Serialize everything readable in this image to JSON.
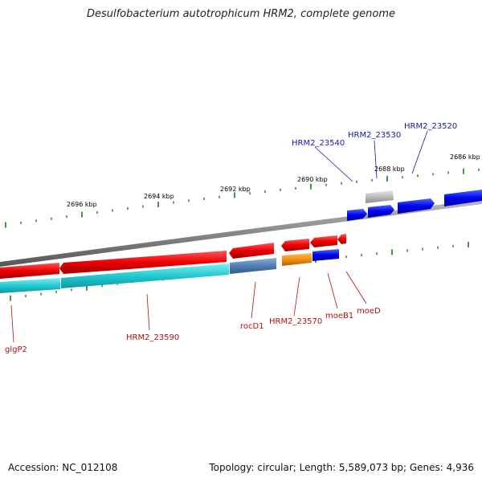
{
  "title": "Desulfobacterium autotrophicum HRM2, complete genome",
  "footer": {
    "accession": "Accession: NC_012108",
    "stats": "Topology: circular; Length: 5,589,073 bp; Genes: 4,936"
  },
  "ruler_labels": [
    "2686 kbp",
    "2688 kbp",
    "2690 kbp",
    "2692 kbp",
    "2694 kbp",
    "2696 kbp"
  ],
  "forward_genes": [
    "HRM2_23520",
    "HRM2_23530",
    "HRM2_23540"
  ],
  "reverse_genes": [
    "moeD",
    "moeB1",
    "HRM2_23570",
    "rocD1",
    "HRM2_23590",
    "glgP2"
  ],
  "colors": {
    "forward_cds": "#0000ee",
    "reverse_cds": "#ee0000",
    "gene_track": "#22c8d0",
    "ticks": "#1a7a1a",
    "backbone": "#888888"
  }
}
